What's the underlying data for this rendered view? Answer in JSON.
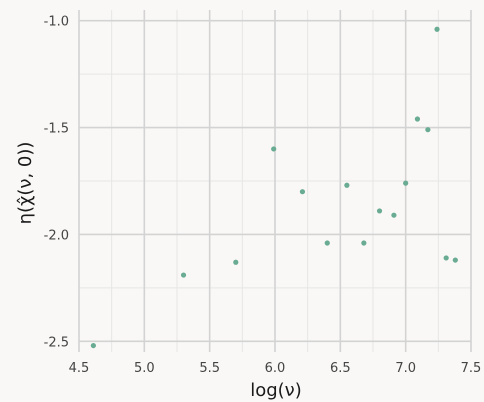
{
  "chart_data": {
    "type": "scatter",
    "title": "",
    "xlabel": "log(ν)",
    "ylabel": "η(χ̂(ν, 0))",
    "xlim": [
      4.5,
      7.5
    ],
    "ylim": [
      -2.55,
      -0.95
    ],
    "grid": true,
    "legend": "none",
    "point_color": "#6aab94",
    "x_ticks": [
      4.5,
      5.0,
      5.5,
      6.0,
      6.5,
      7.0,
      7.5
    ],
    "x_tick_labels": [
      "4.5",
      "5.0",
      "5.5",
      "6.0",
      "6.5",
      "7.0",
      "7.5"
    ],
    "y_ticks": [
      -1.0,
      -1.5,
      -2.0,
      -2.5
    ],
    "y_tick_labels": [
      "-1.0",
      "-1.5",
      "-2.0",
      "-2.5"
    ],
    "points": [
      {
        "x": 4.61,
        "y": -2.52
      },
      {
        "x": 5.3,
        "y": -2.19
      },
      {
        "x": 5.7,
        "y": -2.13
      },
      {
        "x": 5.99,
        "y": -1.6
      },
      {
        "x": 6.21,
        "y": -1.8
      },
      {
        "x": 6.4,
        "y": -2.04
      },
      {
        "x": 6.55,
        "y": -1.77
      },
      {
        "x": 6.68,
        "y": -2.04
      },
      {
        "x": 6.8,
        "y": -1.89
      },
      {
        "x": 6.91,
        "y": -1.91
      },
      {
        "x": 7.0,
        "y": -1.76
      },
      {
        "x": 7.09,
        "y": -1.46
      },
      {
        "x": 7.17,
        "y": -1.51
      },
      {
        "x": 7.24,
        "y": -1.04
      },
      {
        "x": 7.31,
        "y": -2.11
      },
      {
        "x": 7.38,
        "y": -2.12
      }
    ]
  }
}
